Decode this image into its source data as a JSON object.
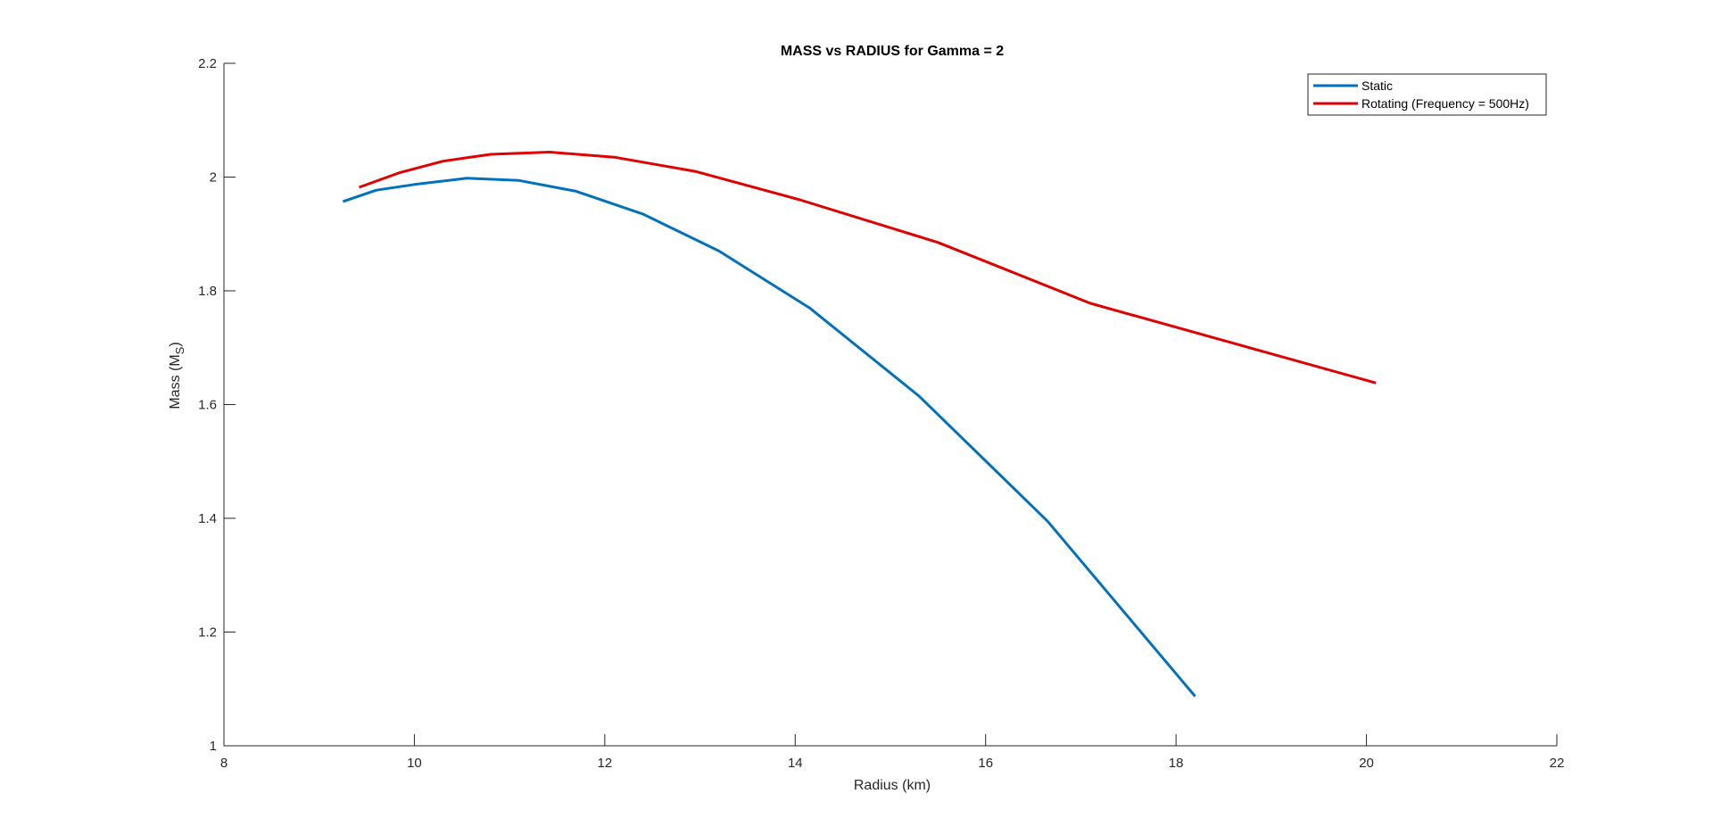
{
  "chart_data": {
    "type": "line",
    "title": "MASS vs RADIUS for Gamma = 2",
    "xlabel": "Radius (km)",
    "ylabel": {
      "main": "Mass (M",
      "subscript": "S",
      "close": ")"
    },
    "xlim": [
      8,
      22
    ],
    "ylim": [
      1,
      2.2
    ],
    "xticks": [
      "8",
      "10",
      "12",
      "14",
      "16",
      "18",
      "20",
      "22"
    ],
    "yticks": [
      "1",
      "1.2",
      "1.4",
      "1.6",
      "1.8",
      "2",
      "2.2"
    ],
    "grid": false,
    "legend_position": "top-right",
    "series": [
      {
        "name": "Static",
        "color": "#0072BD",
        "x": [
          9.25,
          9.6,
          10.0,
          10.55,
          11.1,
          11.7,
          12.4,
          13.2,
          14.15,
          15.3,
          16.65,
          18.2
        ],
        "y": [
          1.957,
          1.977,
          1.987,
          1.998,
          1.994,
          1.975,
          1.935,
          1.87,
          1.77,
          1.615,
          1.395,
          1.087
        ]
      },
      {
        "name": "Rotating (Frequency = 500Hz)",
        "color": "#E00000",
        "x": [
          9.42,
          9.85,
          10.3,
          10.8,
          11.42,
          12.1,
          12.95,
          14.05,
          15.5,
          17.1,
          20.1
        ],
        "y": [
          1.982,
          2.008,
          2.028,
          2.04,
          2.044,
          2.035,
          2.01,
          1.96,
          1.885,
          1.778,
          1.638
        ]
      }
    ]
  }
}
